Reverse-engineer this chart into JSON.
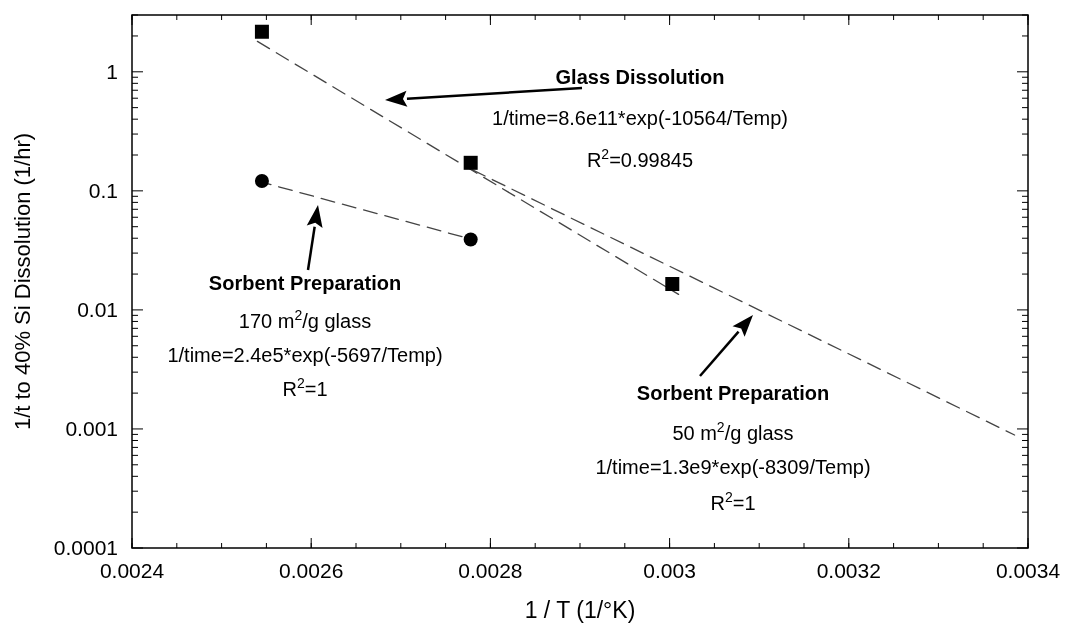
{
  "chart_data": {
    "type": "scatter",
    "xlabel": "1 / T (1/°K)",
    "ylabel": "1/t to 40% Si Dissolution (1/hr)",
    "log": "y",
    "xlim": [
      0.0024,
      0.0034
    ],
    "xticks": [
      0.0024,
      0.0026,
      0.0028,
      0.003,
      0.0032,
      0.0034
    ],
    "ylim": [
      0.0001,
      3
    ],
    "yticks": [
      0.0001,
      0.001,
      0.01,
      0.1,
      1
    ],
    "grid": false,
    "series": [
      {
        "marker": "square",
        "color": "#000000",
        "x": [
          0.002545,
          0.002778,
          0.003003
        ],
        "values": [
          2.17,
          0.172,
          0.0165
        ]
      },
      {
        "marker": "circle",
        "color": "#000000",
        "x": [
          0.002545,
          0.002778
        ],
        "values": [
          0.121,
          0.039
        ]
      },
      {
        "type": "line",
        "marker": "none",
        "line_style": "dashed",
        "color": "#444444",
        "x": [
          0.00254,
          0.00301
        ],
        "values": [
          1.8,
          0.0135
        ]
      },
      {
        "type": "line",
        "marker": "none",
        "line_style": "dashed",
        "color": "#444444",
        "x": [
          0.00254,
          0.00278
        ],
        "values": [
          0.121,
          0.039
        ]
      },
      {
        "type": "line",
        "marker": "none",
        "line_style": "dashed",
        "color": "#444444",
        "x": [
          0.00278,
          0.003385
        ],
        "values": [
          0.15,
          0.00089
        ]
      }
    ],
    "annotations": [
      "Glass Dissolution\n1/time=8.6e11*exp(-10564/Temp)\nR$^{2}$=0.99845",
      "Sorbent Preparation\n170 m$^{2}$/g glass\n1/time=2.4e5*exp(-5697/Temp)\nR$^{2}$=1",
      "Sorbent Preparation\n50 m$^{2}$/g glass\n1/time=1.3e9*exp(-8309/Temp)\nR$^{2}$=1"
    ]
  }
}
